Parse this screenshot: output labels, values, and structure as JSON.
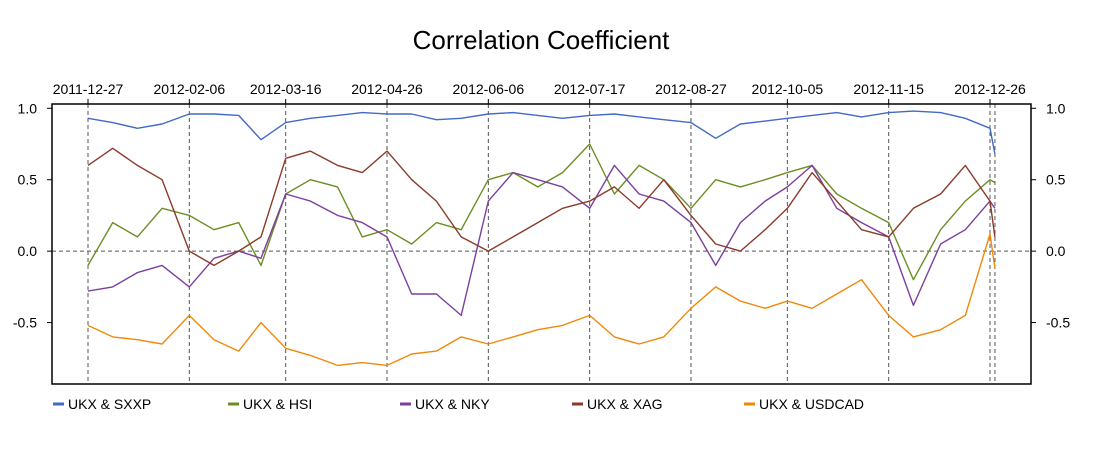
{
  "chart_data": {
    "type": "line",
    "title": "Correlation Coefficient",
    "xlabel": "",
    "ylabel": "",
    "ylim": [
      -0.93,
      1.03
    ],
    "grid": {
      "x": true,
      "y_zero": true
    },
    "legend_position": "bottom",
    "x_ticks": [
      "2011-12-27",
      "2012-02-06",
      "2012-03-16",
      "2012-04-26",
      "2012-06-06",
      "2012-07-17",
      "2012-08-27",
      "2012-10-05",
      "2012-11-15",
      "2012-12-26"
    ],
    "y_ticks": [
      1.0,
      0.5,
      0.0,
      -0.5
    ],
    "y_tick_labels": [
      "1.0",
      "0.5",
      "0.0",
      "-0.5"
    ],
    "x": [
      "2011-12-27",
      "2012-01-06",
      "2012-01-16",
      "2012-01-26",
      "2012-02-06",
      "2012-02-16",
      "2012-02-26",
      "2012-03-06",
      "2012-03-16",
      "2012-03-26",
      "2012-04-06",
      "2012-04-16",
      "2012-04-26",
      "2012-05-06",
      "2012-05-16",
      "2012-05-26",
      "2012-06-06",
      "2012-06-16",
      "2012-06-26",
      "2012-07-06",
      "2012-07-17",
      "2012-07-27",
      "2012-08-06",
      "2012-08-16",
      "2012-08-27",
      "2012-09-06",
      "2012-09-16",
      "2012-09-26",
      "2012-10-05",
      "2012-10-15",
      "2012-10-25",
      "2012-11-04",
      "2012-11-15",
      "2012-11-25",
      "2012-12-06",
      "2012-12-16",
      "2012-12-26",
      "2012-12-28"
    ],
    "series": [
      {
        "name": "UKX  &  SXXP",
        "color": "#4169c8",
        "values": [
          0.93,
          0.9,
          0.86,
          0.89,
          0.96,
          0.96,
          0.95,
          0.78,
          0.9,
          0.93,
          0.95,
          0.97,
          0.96,
          0.96,
          0.92,
          0.93,
          0.96,
          0.97,
          0.95,
          0.93,
          0.95,
          0.96,
          0.94,
          0.92,
          0.9,
          0.79,
          0.89,
          0.91,
          0.93,
          0.95,
          0.97,
          0.94,
          0.97,
          0.98,
          0.97,
          0.93,
          0.86,
          0.68
        ]
      },
      {
        "name": "UKX  &  HSI",
        "color": "#6b8e23",
        "values": [
          -0.1,
          0.2,
          0.1,
          0.3,
          0.25,
          0.15,
          0.2,
          -0.1,
          0.4,
          0.5,
          0.45,
          0.1,
          0.15,
          0.05,
          0.2,
          0.15,
          0.5,
          0.55,
          0.45,
          0.55,
          0.75,
          0.4,
          0.6,
          0.5,
          0.3,
          0.5,
          0.45,
          0.5,
          0.55,
          0.6,
          0.4,
          0.3,
          0.2,
          -0.2,
          0.15,
          0.35,
          0.5,
          0.48
        ]
      },
      {
        "name": "UKX  &  NKY",
        "color": "#7b3f9e",
        "values": [
          -0.28,
          -0.25,
          -0.15,
          -0.1,
          -0.25,
          -0.05,
          0.0,
          -0.05,
          0.4,
          0.35,
          0.25,
          0.2,
          0.1,
          -0.3,
          -0.3,
          -0.45,
          0.35,
          0.55,
          0.5,
          0.45,
          0.3,
          0.6,
          0.4,
          0.35,
          0.2,
          -0.1,
          0.2,
          0.35,
          0.45,
          0.6,
          0.3,
          0.2,
          0.1,
          -0.38,
          0.05,
          0.15,
          0.35,
          0.3
        ]
      },
      {
        "name": "UKX  &  XAG",
        "color": "#8b3a2a",
        "values": [
          0.6,
          0.72,
          0.6,
          0.5,
          0.0,
          -0.1,
          0.0,
          0.1,
          0.65,
          0.7,
          0.6,
          0.55,
          0.7,
          0.5,
          0.35,
          0.1,
          0.0,
          0.1,
          0.2,
          0.3,
          0.35,
          0.45,
          0.3,
          0.5,
          0.25,
          0.05,
          0.0,
          0.15,
          0.3,
          0.55,
          0.35,
          0.15,
          0.1,
          0.3,
          0.4,
          0.6,
          0.35,
          0.1
        ]
      },
      {
        "name": "UKX  &  USDCAD",
        "color": "#f0880a",
        "values": [
          -0.52,
          -0.6,
          -0.62,
          -0.65,
          -0.45,
          -0.62,
          -0.7,
          -0.5,
          -0.68,
          -0.73,
          -0.8,
          -0.78,
          -0.8,
          -0.72,
          -0.7,
          -0.6,
          -0.65,
          -0.6,
          -0.55,
          -0.52,
          -0.45,
          -0.6,
          -0.65,
          -0.6,
          -0.4,
          -0.25,
          -0.35,
          -0.4,
          -0.35,
          -0.4,
          -0.3,
          -0.2,
          -0.45,
          -0.6,
          -0.55,
          -0.45,
          0.12,
          -0.12
        ]
      }
    ]
  }
}
